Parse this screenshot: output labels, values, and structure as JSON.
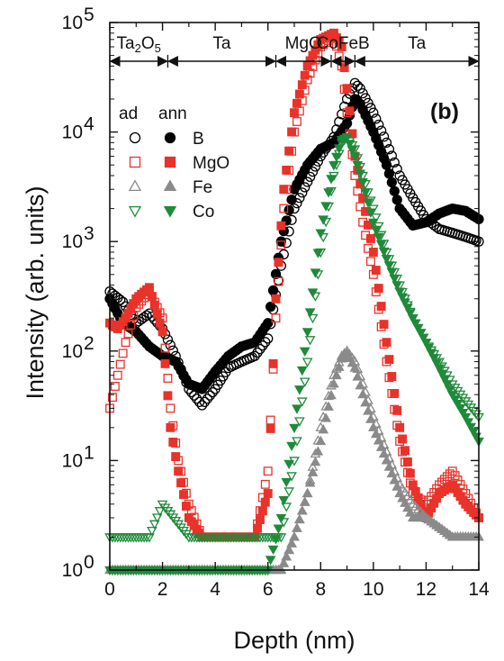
{
  "chart_data": {
    "type": "scatter",
    "panel_label": "(b)",
    "xlabel": "Depth (nm)",
    "ylabel": "Intensity (arb. units)",
    "xlim": [
      0,
      14
    ],
    "ylim": [
      1,
      100000
    ],
    "yscale": "log",
    "x_ticks": [
      "0",
      "2",
      "4",
      "6",
      "8",
      "10",
      "12",
      "14"
    ],
    "y_ticks": [
      {
        "base": "10",
        "exp": "0"
      },
      {
        "base": "10",
        "exp": "1"
      },
      {
        "base": "10",
        "exp": "2"
      },
      {
        "base": "10",
        "exp": "3"
      },
      {
        "base": "10",
        "exp": "4"
      },
      {
        "base": "10",
        "exp": "5"
      }
    ],
    "layers": [
      {
        "name": "Ta2O5",
        "main": "Ta",
        "sub": "2",
        "mid": "O",
        "sub2": "5",
        "from": 0,
        "to": 2.2
      },
      {
        "name": "Ta",
        "from": 2.2,
        "to": 6.3
      },
      {
        "name": "MgO",
        "from": 6.3,
        "to": 8.4
      },
      {
        "name": "CoFeB",
        "from": 8.4,
        "to": 9.3
      },
      {
        "name": "Ta",
        "from": 9.3,
        "to": 14
      }
    ],
    "legend": {
      "header_ad": "ad",
      "header_ann": "ann",
      "location": "upper-left",
      "entries": [
        "B",
        "MgO",
        "Fe",
        "Co"
      ]
    },
    "series": [
      {
        "name": "B",
        "state": "ad",
        "marker": "circle-open",
        "color": "#000000",
        "x": [
          0,
          0.5,
          1,
          1.5,
          2,
          2.5,
          3,
          3.5,
          4,
          4.5,
          5,
          5.5,
          6,
          6.5,
          7,
          7.5,
          8,
          8.5,
          9,
          9.3,
          9.5,
          10,
          10.5,
          11,
          11.5,
          12,
          12.5,
          13,
          13.5,
          14
        ],
        "y": [
          350,
          280,
          180,
          220,
          160,
          90,
          45,
          32,
          45,
          70,
          80,
          90,
          130,
          600,
          2000,
          3500,
          6000,
          9000,
          20000,
          28000,
          25000,
          15000,
          8000,
          4000,
          2500,
          1600,
          1300,
          1200,
          1100,
          1000
        ]
      },
      {
        "name": "B",
        "state": "ann",
        "marker": "circle-filled",
        "color": "#000000",
        "x": [
          0,
          0.5,
          1,
          1.5,
          2,
          2.5,
          3,
          3.5,
          4,
          4.5,
          5,
          5.5,
          6,
          6.5,
          7,
          7.5,
          8,
          8.5,
          9,
          9.3,
          9.5,
          10,
          10.5,
          11,
          11.5,
          12,
          12.5,
          13,
          13.5,
          14
        ],
        "y": [
          300,
          180,
          150,
          110,
          90,
          80,
          50,
          45,
          65,
          90,
          110,
          120,
          180,
          1000,
          3000,
          5000,
          7000,
          8000,
          12000,
          20000,
          18000,
          10000,
          5000,
          2000,
          1400,
          1500,
          1800,
          2000,
          1900,
          1600
        ]
      },
      {
        "name": "MgO",
        "state": "ad",
        "marker": "square-open",
        "color": "#e8322a",
        "x": [
          0,
          0.3,
          0.6,
          1,
          1.5,
          2,
          2.3,
          2.6,
          3,
          3.5,
          4,
          4.5,
          5,
          5.5,
          6,
          6.3,
          6.6,
          7,
          7.5,
          8,
          8.5,
          8.8,
          9,
          9.3,
          9.6,
          10,
          10.5,
          11,
          11.5,
          12,
          12.5,
          13,
          13.5,
          14
        ],
        "y": [
          30,
          60,
          120,
          250,
          350,
          200,
          30,
          10,
          4,
          2,
          2,
          2,
          2,
          2,
          8,
          200,
          2000,
          10000,
          30000,
          60000,
          75000,
          40000,
          15000,
          4000,
          1500,
          500,
          80,
          15,
          5,
          4,
          6,
          8,
          5,
          3
        ]
      },
      {
        "name": "MgO",
        "state": "ann",
        "marker": "square-filled",
        "color": "#e8322a",
        "x": [
          0,
          0.3,
          0.6,
          1,
          1.5,
          2,
          2.3,
          2.6,
          3,
          3.5,
          4,
          4.5,
          5,
          5.5,
          6,
          6.3,
          6.6,
          7,
          7.5,
          8,
          8.5,
          8.8,
          9,
          9.3,
          9.6,
          10,
          10.5,
          11,
          11.5,
          12,
          12.5,
          13,
          13.5,
          14
        ],
        "y": [
          180,
          160,
          200,
          300,
          380,
          150,
          20,
          8,
          3,
          2,
          2,
          2,
          2,
          2,
          5,
          300,
          3000,
          15000,
          40000,
          70000,
          80000,
          60000,
          25000,
          6000,
          2500,
          800,
          120,
          20,
          6,
          3,
          5,
          6,
          4,
          3
        ]
      },
      {
        "name": "Fe",
        "state": "ad",
        "marker": "triangle-up-open",
        "color": "#8a8a8a",
        "x": [
          0,
          1,
          2,
          3,
          4,
          5,
          6,
          6.5,
          7,
          7.5,
          8,
          8.5,
          8.8,
          9,
          9.3,
          9.6,
          10,
          10.5,
          11,
          11.5,
          12,
          13,
          14
        ],
        "y": [
          1,
          1,
          1,
          1,
          1,
          1,
          1,
          1,
          2,
          5,
          20,
          60,
          90,
          100,
          80,
          50,
          25,
          12,
          6,
          4,
          3,
          2,
          2
        ]
      },
      {
        "name": "Fe",
        "state": "ann",
        "marker": "triangle-up-filled",
        "color": "#8a8a8a",
        "x": [
          0,
          1,
          2,
          3,
          4,
          5,
          6,
          6.5,
          7,
          7.5,
          8,
          8.5,
          8.8,
          9,
          9.3,
          9.6,
          10,
          10.5,
          11,
          11.5,
          12,
          13,
          14
        ],
        "y": [
          1,
          1,
          1,
          1,
          1,
          1,
          1,
          1,
          2,
          5,
          15,
          50,
          85,
          95,
          70,
          40,
          20,
          10,
          5,
          3,
          3,
          2,
          2
        ]
      },
      {
        "name": "Co",
        "state": "ad",
        "marker": "triangle-down-open",
        "color": "#1f8a3a",
        "x": [
          0,
          0.5,
          1,
          1.5,
          2,
          3,
          4,
          5,
          6,
          6.5,
          7,
          7.5,
          8,
          8.5,
          8.8,
          9,
          9.3,
          9.6,
          10,
          10.5,
          11,
          11.5,
          12,
          12.5,
          13,
          13.5,
          14
        ],
        "y": [
          2,
          2,
          2,
          2,
          4,
          2,
          2,
          2,
          2,
          2,
          10,
          80,
          800,
          4000,
          8000,
          9000,
          7000,
          4000,
          2000,
          800,
          400,
          200,
          120,
          80,
          50,
          35,
          25
        ]
      },
      {
        "name": "Co",
        "state": "ann",
        "marker": "triangle-down-filled",
        "color": "#1f8a3a",
        "x": [
          0,
          0.5,
          1,
          1.5,
          2,
          3,
          4,
          5,
          6,
          6.5,
          7,
          7.5,
          8,
          8.5,
          8.8,
          9,
          9.3,
          9.6,
          10,
          10.5,
          11,
          11.5,
          12,
          12.5,
          13,
          13.5,
          14
        ],
        "y": [
          1,
          1,
          1,
          1,
          1,
          1,
          1,
          1,
          1,
          3,
          20,
          150,
          1200,
          5000,
          8500,
          9000,
          6000,
          3500,
          1500,
          700,
          350,
          200,
          120,
          70,
          40,
          25,
          15
        ]
      }
    ]
  }
}
